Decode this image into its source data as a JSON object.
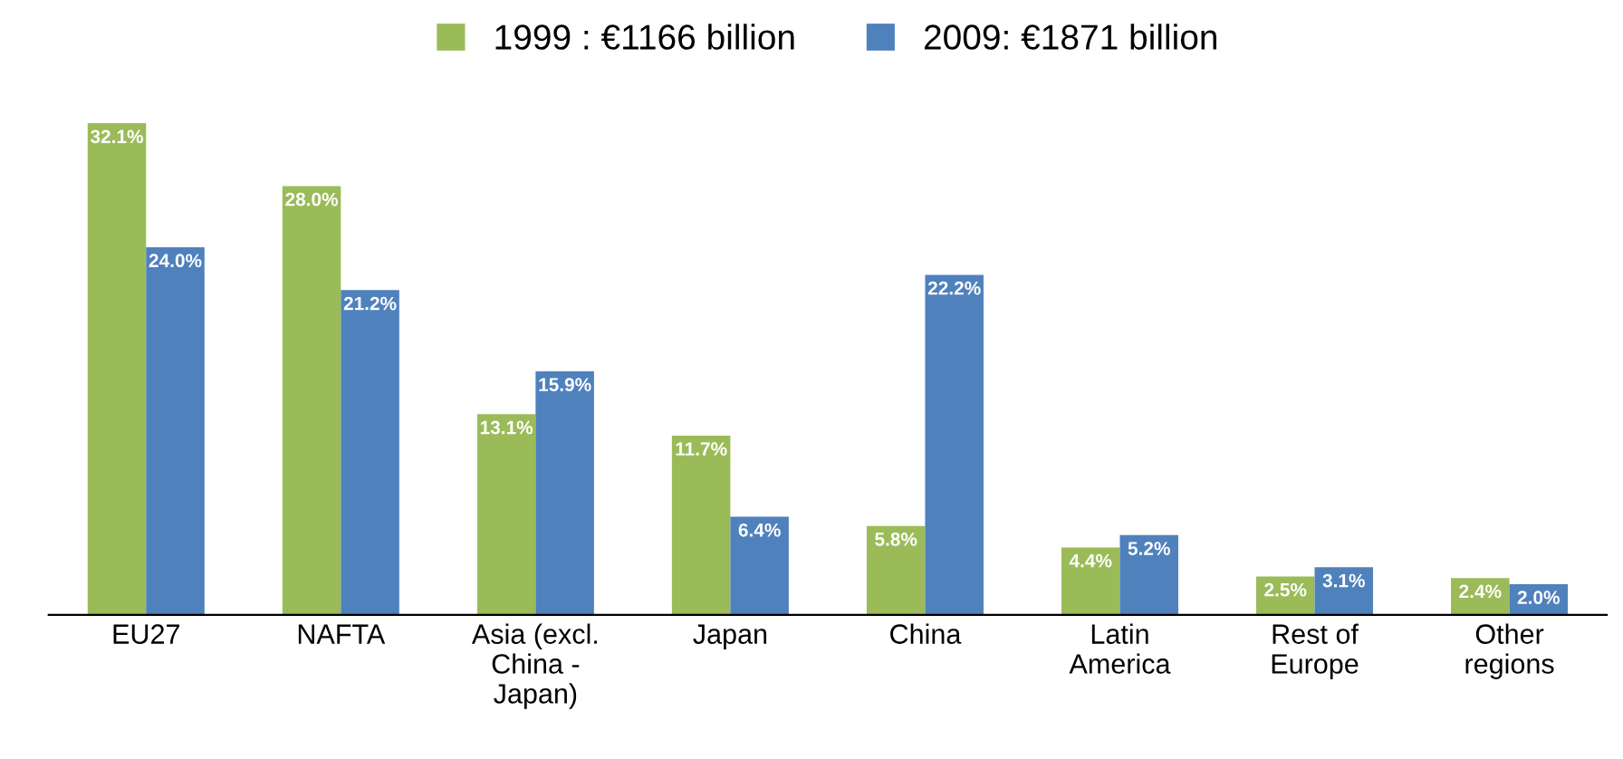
{
  "chart_data": {
    "type": "bar",
    "categories": [
      "EU27",
      "NAFTA",
      "Asia (excl.\nChina -\nJapan)",
      "Japan",
      "China",
      "Latin\nAmerica",
      "Rest of\nEurope",
      "Other\nregions"
    ],
    "series": [
      {
        "name": "1999 : €1166 billion",
        "color": "#9bbb59",
        "values": [
          32.1,
          28.0,
          13.1,
          11.7,
          5.8,
          4.4,
          2.5,
          2.4
        ],
        "value_labels": [
          "32.1%",
          "28.0%",
          "13.1%",
          "11.7%",
          "5.8%",
          "4.4%",
          "2.5%",
          "2.4%"
        ]
      },
      {
        "name": "2009: €1871 billion",
        "color": "#4f81bd",
        "values": [
          24.0,
          21.2,
          15.9,
          6.4,
          22.2,
          5.2,
          3.1,
          2.0
        ],
        "value_labels": [
          "24.0%",
          "21.2%",
          "15.9%",
          "6.4%",
          "22.2%",
          "5.2%",
          "3.1%",
          "2.0%"
        ]
      }
    ],
    "legend": "top",
    "grid": false
  }
}
